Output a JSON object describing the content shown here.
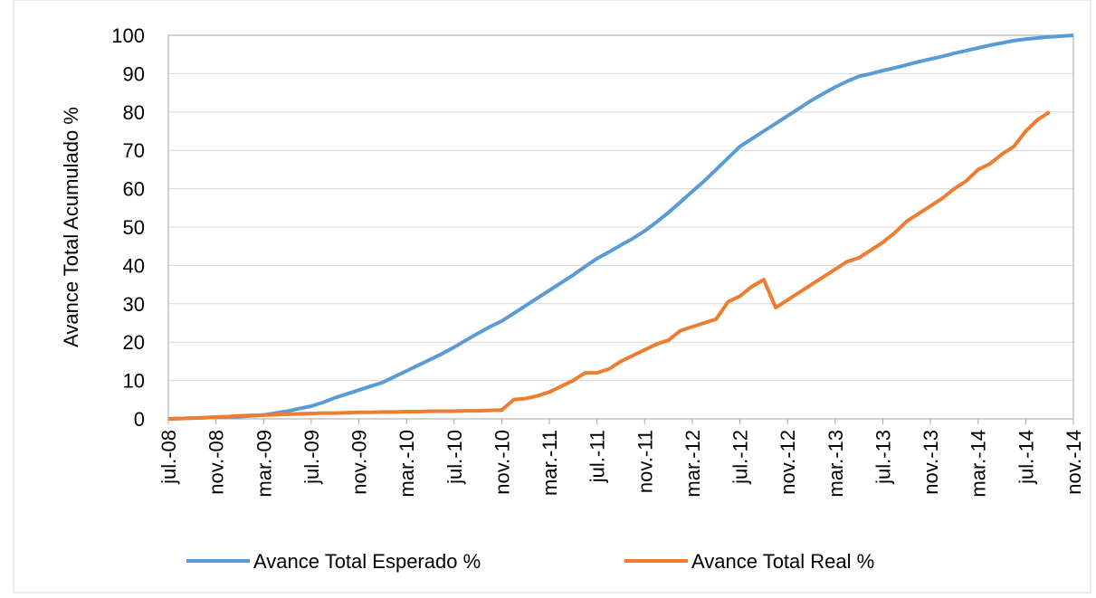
{
  "chart_data": {
    "type": "line",
    "y_label": "Avance Total Acumulado %",
    "categories": [
      "jul.-08",
      null,
      null,
      null,
      "nov.-08",
      null,
      null,
      null,
      "mar.-09",
      null,
      null,
      null,
      "jul.-09",
      null,
      null,
      null,
      "nov.-09",
      null,
      null,
      null,
      "mar.-10",
      null,
      null,
      null,
      "jul.-10",
      null,
      null,
      null,
      "nov.-10",
      null,
      null,
      null,
      "mar.-11",
      null,
      null,
      null,
      "jul.-11",
      null,
      null,
      null,
      "nov.-11",
      null,
      null,
      null,
      "mar.-12",
      null,
      null,
      null,
      "jul.-12",
      null,
      null,
      null,
      "nov.-12",
      null,
      null,
      null,
      "mar.-13",
      null,
      null,
      null,
      "jul.-13",
      null,
      null,
      null,
      "nov.-13",
      null,
      null,
      null,
      "mar.-14",
      null,
      null,
      null,
      "jul.-14",
      null,
      null,
      null,
      "nov.-14"
    ],
    "series": [
      {
        "name": "Avance Total Esperado %",
        "color": "#5b9bd5",
        "values": [
          0,
          0.1,
          0.2,
          0.3,
          0.4,
          0.5,
          0.6,
          0.8,
          1,
          1.5,
          2,
          2.7,
          3.3,
          4.3,
          5.5,
          6.5,
          7.5,
          8.5,
          9.5,
          11,
          12.5,
          14,
          15.5,
          17,
          18.7,
          20.5,
          22.3,
          24,
          25.5,
          27.5,
          29.5,
          31.5,
          33.5,
          35.5,
          37.5,
          39.7,
          41.8,
          43.5,
          45.3,
          47,
          49,
          51.3,
          53.8,
          56.5,
          59.3,
          62,
          65,
          68,
          71,
          73,
          75,
          77,
          79,
          81,
          83,
          84.8,
          86.5,
          88,
          89.3,
          90,
          90.8,
          91.5,
          92.3,
          93.1,
          93.8,
          94.5,
          95.3,
          96,
          96.7,
          97.4,
          98,
          98.6,
          99,
          99.3,
          99.6,
          99.8,
          100
        ]
      },
      {
        "name": "Avance Total Real %",
        "color": "#ed7d31",
        "values": [
          0,
          0.1,
          0.2,
          0.3,
          0.5,
          0.6,
          0.8,
          0.9,
          1,
          1.1,
          1.2,
          1.3,
          1.4,
          1.5,
          1.5,
          1.6,
          1.7,
          1.7,
          1.8,
          1.8,
          1.9,
          1.9,
          2,
          2,
          2,
          2.1,
          2.1,
          2.2,
          2.3,
          5,
          5.3,
          6,
          7,
          8.5,
          10,
          12,
          12,
          13,
          15,
          16.5,
          18,
          19.5,
          20.5,
          23,
          24,
          25,
          26,
          30.5,
          32,
          34.5,
          36.3,
          29,
          31,
          33,
          35,
          37,
          39,
          41,
          42,
          44,
          46,
          48.5,
          51.5,
          53.5,
          55.5,
          57.5,
          60,
          62,
          65,
          66.5,
          69,
          71,
          75,
          78,
          80,
          null,
          null
        ]
      }
    ],
    "ylim": [
      0,
      100
    ],
    "yticks": [
      0,
      10,
      20,
      30,
      40,
      50,
      60,
      70,
      80,
      90,
      100
    ],
    "grid": true,
    "legend": "bottom"
  }
}
